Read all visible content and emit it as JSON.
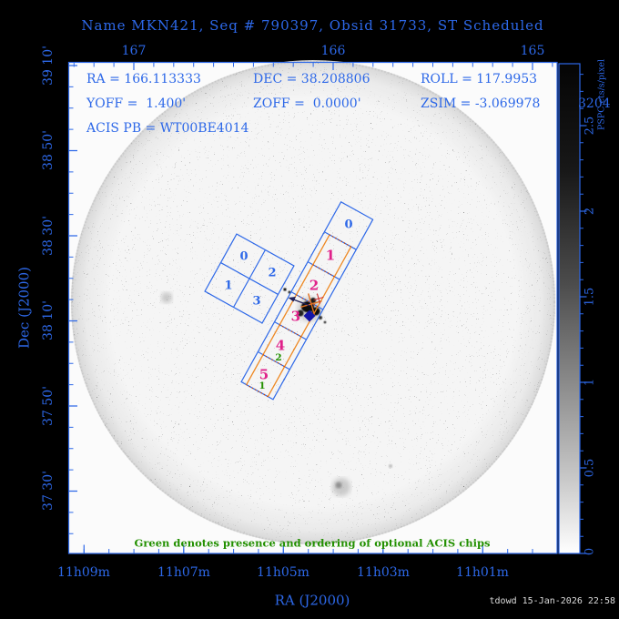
{
  "title": "Name MKN421, Seq # 790397, Obsid 31733, ST Scheduled",
  "header": {
    "ra": "RA = 166.113333",
    "dec": "DEC = 38.208806",
    "roll": "ROLL = 117.9953",
    "yoff": "YOFF =  1.400'",
    "zoff": "ZOFF =  0.0000'",
    "zsim": "ZSIM = -3.069978",
    "zsim_overflow": "3204",
    "acis_pb": "ACIS PB = WT00BE4014"
  },
  "axes": {
    "top": {
      "labels": [
        "167",
        "166",
        "165"
      ]
    },
    "bottom": {
      "title": "RA (J2000)",
      "labels": [
        "11h09m",
        "11h07m",
        "11h05m",
        "11h03m",
        "11h01m"
      ]
    },
    "left": {
      "title": "Dec (J2000)",
      "labels": [
        "39 10'",
        "38 50'",
        "38 30'",
        "38 10'",
        "37 50'",
        "37 30'"
      ]
    }
  },
  "colorbar": {
    "title": "PSPC cts/s/pixel",
    "labels": [
      "2.5",
      "2",
      "1.5",
      "1",
      "0.5",
      "0"
    ]
  },
  "chips": {
    "acis_i": [
      "0",
      "2",
      "1",
      "3"
    ],
    "acis_s": [
      "0",
      "1",
      "2",
      "3",
      "4",
      "5"
    ],
    "optional_green": [
      "2",
      "1"
    ]
  },
  "note": "Green denotes presence and ordering of optional ACIS chips",
  "footer": "tdowd 15-Jan-2026 22:58",
  "colors": {
    "accent_blue": "#2d68e8",
    "magenta": "#e0218a",
    "orange": "#ee8822",
    "green": "#229000",
    "red": "#cc2222"
  }
}
